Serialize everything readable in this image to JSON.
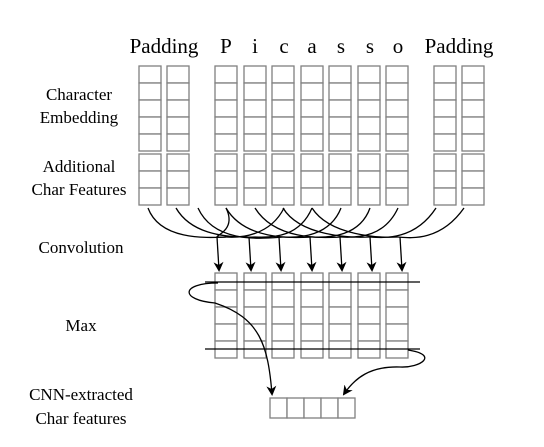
{
  "header_tokens": [
    "Padding",
    "P",
    "i",
    "c",
    "a",
    "s",
    "s",
    "o",
    "Padding"
  ],
  "row_labels": {
    "character_embedding": [
      "Character",
      "Embedding"
    ],
    "additional_features": [
      "Additional",
      "Char Features"
    ],
    "convolution": "Convolution",
    "max": "Max",
    "cnn_extracted": [
      "CNN-extracted",
      "Char features"
    ]
  },
  "colors": {
    "cell_stroke": "#808080",
    "line": "#000000",
    "background": "#ffffff"
  }
}
